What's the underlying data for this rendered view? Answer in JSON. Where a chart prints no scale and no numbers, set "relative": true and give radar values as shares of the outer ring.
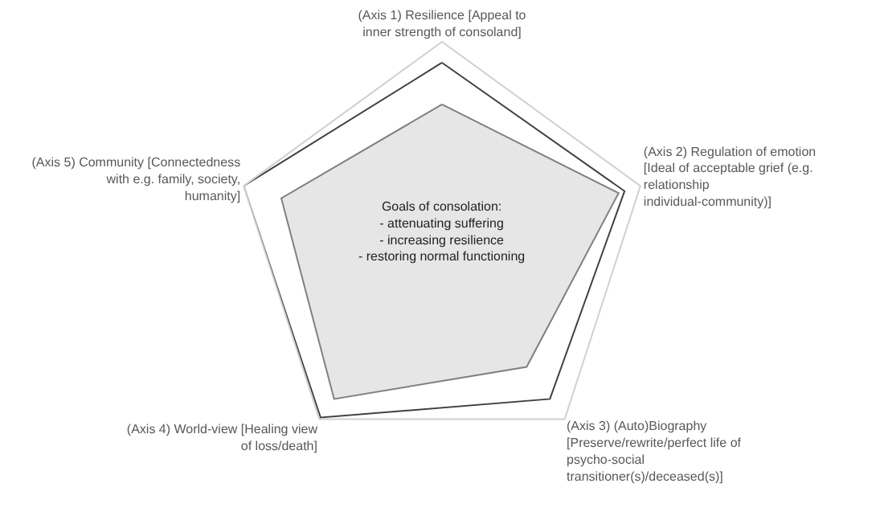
{
  "chart_data": {
    "type": "radar",
    "relative": true,
    "categories": [
      "(Axis 1) Resilience [Appeal to inner strength of consoland]",
      "(Axis 2) Regulation of emotion [Ideal of acceptable grief (e.g. relationship individual-community)]",
      "(Axis 3) (Auto)Biography [Preserve/rewrite/perfect life of psycho-social transitioner(s)/deceased(s)]",
      "(Axis 4) World-view [Healing view of loss/death]",
      "(Axis 5) Community [Connectedness with e.g. family, society, humanity]"
    ],
    "series": [
      {
        "color": "#404040",
        "values": [
          0.9,
          0.92,
          0.88,
          0.99,
          1.0
        ]
      },
      {
        "color": "#808080",
        "values": [
          0.7,
          0.89,
          0.69,
          0.88,
          0.81
        ]
      }
    ],
    "annotations": [
      "Goals of consolation:\n- attenuating suffering\n- increasing resilience\n- restoring normal functioning"
    ]
  }
}
